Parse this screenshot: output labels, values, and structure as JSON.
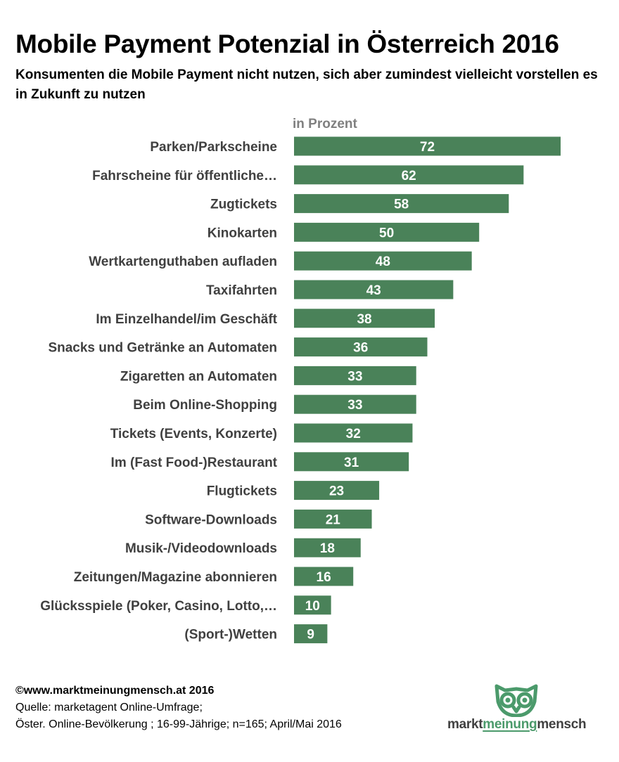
{
  "title": "Mobile Payment Potenzial in Österreich 2016",
  "subtitle": "Konsumenten die Mobile Payment nicht nutzen, sich aber zumindest vielleicht vorstellen es in Zukunft zu nutzen",
  "unit_label": "in Prozent",
  "bar_color": "#4a8259",
  "chart_data": {
    "type": "bar",
    "orientation": "horizontal",
    "categories": [
      "Parken/Parkscheine",
      "Fahrscheine für öffentliche…",
      "Zugtickets",
      "Kinokarten",
      "Wertkartenguthaben aufladen",
      "Taxifahrten",
      "Im Einzelhandel/im Geschäft",
      "Snacks und Getränke an Automaten",
      "Zigaretten an Automaten",
      "Beim Online-Shopping",
      "Tickets (Events, Konzerte)",
      "Im (Fast Food-)Restaurant",
      "Flugtickets",
      "Software-Downloads",
      "Musik-/Videodownloads",
      "Zeitungen/Magazine abonnieren",
      "Glücksspiele (Poker, Casino, Lotto,…",
      "(Sport-)Wetten"
    ],
    "values": [
      72,
      62,
      58,
      50,
      48,
      43,
      38,
      36,
      33,
      33,
      32,
      31,
      23,
      21,
      18,
      16,
      10,
      9
    ],
    "xlabel": "in Prozent",
    "xlim": [
      0,
      72
    ],
    "grid": false,
    "data_labels": true
  },
  "footer": {
    "copyright": "©www.marktmeinungmensch.at 2016",
    "source": "Quelle: marketagent Online-Umfrage;",
    "sample": "Öster. Online-Bevölkerung ; 16-99-Jährige; n=165; April/Mai 2016"
  },
  "logo": {
    "part1": "markt",
    "part2": "meinung",
    "part3": "mensch",
    "icon": "owl-icon",
    "accent_color": "#4b9a6b"
  }
}
